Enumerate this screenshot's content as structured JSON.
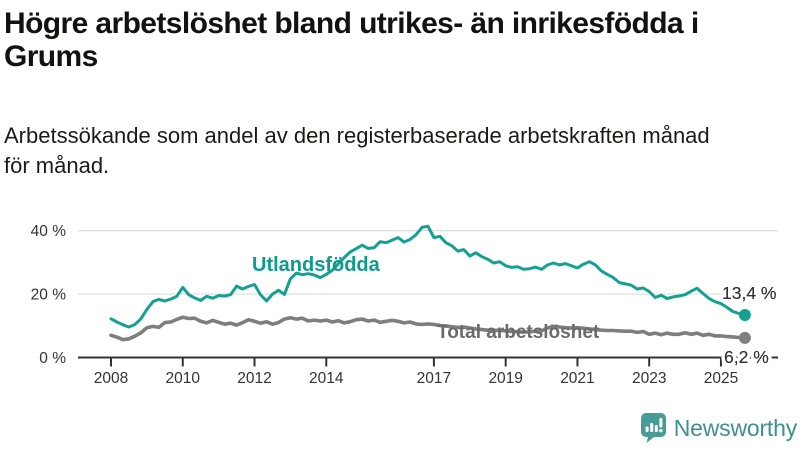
{
  "header": {
    "title": "Högre arbetslöshet bland utrikes- än inrikesfödda i\nGrums",
    "subtitle": "Arbetssökande som andel av den registerbaserade arbetskraften månad\nför månad."
  },
  "footer": {
    "brand": "Newsworthy",
    "brand_icon": "bar-chart-speech-bubble",
    "brand_color": "#4a9c96"
  },
  "chart_data": {
    "type": "line",
    "unit": "%",
    "x_start": 2008.0,
    "x_step_years": 0.1666667,
    "xlim": [
      2007.8,
      2026.1
    ],
    "ylim": [
      0,
      44
    ],
    "grid": "horizontal",
    "x_ticks": [
      {
        "value": 2008,
        "label": "2008"
      },
      {
        "value": 2010,
        "label": "2010"
      },
      {
        "value": 2012,
        "label": "2012"
      },
      {
        "value": 2014,
        "label": "2014"
      },
      {
        "value": 2017,
        "label": "2017"
      },
      {
        "value": 2019,
        "label": "2019"
      },
      {
        "value": 2021,
        "label": "2021"
      },
      {
        "value": 2023,
        "label": "2023"
      },
      {
        "value": 2025,
        "label": "2025"
      }
    ],
    "y_ticks": [
      {
        "value": 0,
        "label": "0 %"
      },
      {
        "value": 20,
        "label": "20 %"
      },
      {
        "value": 40,
        "label": "40 %"
      }
    ],
    "series": [
      {
        "id": "utlandsfodda",
        "name": "Utlandsfödda",
        "color": "#14a191",
        "label_color": "#0d9b8b",
        "end_label": "13,4 %",
        "end_value": 13.4,
        "values": [
          12.2,
          11.2,
          10.3,
          9.6,
          10.4,
          12.2,
          15.2,
          17.6,
          18.3,
          17.8,
          18.4,
          19.3,
          22.1,
          19.8,
          18.8,
          18.0,
          19.3,
          18.7,
          19.5,
          19.4,
          19.8,
          22.5,
          21.6,
          22.4,
          23.0,
          19.8,
          17.8,
          20.0,
          21.2,
          19.9,
          24.8,
          26.6,
          26.1,
          26.4,
          26.0,
          25.2,
          26.2,
          27.5,
          29.5,
          31.5,
          33.3,
          34.3,
          35.4,
          34.4,
          34.6,
          36.5,
          36.2,
          37.0,
          37.8,
          36.4,
          37.2,
          38.7,
          41.0,
          41.4,
          37.8,
          38.2,
          36.2,
          35.2,
          33.5,
          34.0,
          32.0,
          33.0,
          31.8,
          31.0,
          29.8,
          30.2,
          28.9,
          28.4,
          28.6,
          27.8,
          28.0,
          28.5,
          27.8,
          29.2,
          29.8,
          29.2,
          29.6,
          28.9,
          28.2,
          29.4,
          30.2,
          29.2,
          27.3,
          26.2,
          25.2,
          23.6,
          23.2,
          22.8,
          21.6,
          21.9,
          20.8,
          18.9,
          19.6,
          18.6,
          19.1,
          19.4,
          19.8,
          20.9,
          21.8,
          20.2,
          18.6,
          17.6,
          17.0,
          15.8,
          14.5,
          13.9,
          13.4
        ]
      },
      {
        "id": "total-arbetsloshet",
        "name": "Total arbetslöshet",
        "color": "#7e7e7e",
        "label_color": "#6b6b6b",
        "end_label": "6,2 %",
        "end_value": 6.2,
        "values": [
          7.0,
          6.4,
          5.6,
          5.9,
          6.7,
          7.8,
          9.4,
          9.8,
          9.5,
          11.0,
          11.2,
          12.0,
          12.7,
          12.3,
          12.4,
          11.4,
          10.9,
          11.7,
          11.1,
          10.5,
          10.8,
          10.2,
          11.0,
          11.9,
          11.4,
          10.8,
          11.3,
          10.5,
          11.0,
          12.1,
          12.5,
          12.1,
          12.4,
          11.5,
          11.8,
          11.5,
          11.8,
          11.2,
          11.6,
          10.9,
          11.3,
          11.9,
          12.1,
          11.5,
          11.8,
          11.1,
          11.4,
          11.7,
          11.4,
          10.9,
          11.2,
          10.6,
          10.4,
          10.6,
          10.4,
          10.1,
          9.9,
          9.7,
          9.5,
          9.6,
          9.3,
          9.0,
          8.8,
          8.6,
          8.5,
          8.6,
          8.4,
          8.2,
          8.1,
          8.0,
          8.1,
          8.3,
          8.4,
          9.3,
          9.8,
          9.6,
          9.4,
          9.3,
          9.4,
          9.2,
          9.0,
          8.8,
          8.6,
          8.5,
          8.5,
          8.4,
          8.3,
          8.3,
          7.9,
          8.2,
          7.3,
          7.7,
          7.2,
          7.7,
          7.3,
          7.3,
          7.8,
          7.3,
          7.7,
          7.0,
          7.3,
          6.8,
          6.8,
          6.6,
          6.5,
          6.3,
          6.2
        ]
      }
    ]
  }
}
